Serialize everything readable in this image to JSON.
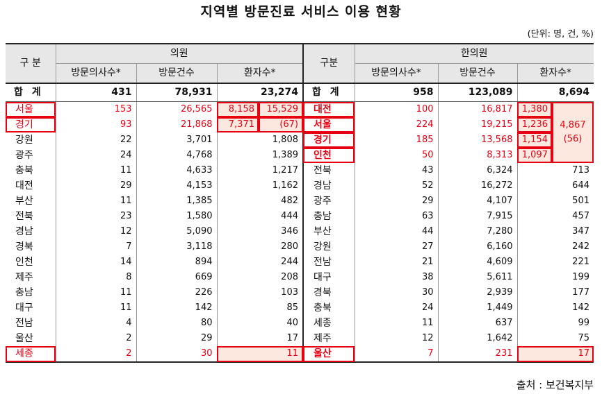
{
  "title": "지역별 방문진료 서비스 이용 현황",
  "unit": "(단위: 명, 건, %)",
  "source": "출처 : 보건복지부",
  "colors": {
    "highlight_red": "#e60012",
    "highlight_fill": "#fde8df",
    "header_fill": "#e7e7e7"
  },
  "header": {
    "region": "구 분",
    "clinic": "의원",
    "region2": "구분",
    "oriental": "한의원",
    "cols_left": [
      "방문의사수*",
      "방문건수",
      "환자수*"
    ],
    "cols_right": [
      "방문의사수*",
      "방문건수",
      "환자수*"
    ]
  },
  "total": {
    "label": "합 계",
    "left": [
      "431",
      "78,931",
      "23,274"
    ],
    "label2": "합 계",
    "right": [
      "958",
      "123,089",
      "8,694"
    ]
  },
  "groups": {
    "left_patients_split": [
      "8,158",
      "7,371"
    ],
    "left_patients_sum": "15,529",
    "left_patients_pct": "(67)",
    "right_patients_sum": "4,867",
    "right_patients_pct": "(56)"
  },
  "rows": [
    {
      "l_region": "서울",
      "l_doc": "153",
      "l_visit": "26,565",
      "l_pat": "8,158",
      "r_region": "대전",
      "r_doc": "100",
      "r_visit": "16,817",
      "r_pat": "1,380"
    },
    {
      "l_region": "경기",
      "l_doc": "93",
      "l_visit": "21,868",
      "l_pat": "7,371",
      "r_region": "서울",
      "r_doc": "224",
      "r_visit": "19,215",
      "r_pat": "1,236"
    },
    {
      "l_region": "강원",
      "l_doc": "22",
      "l_visit": "3,701",
      "l_pat": "1,808",
      "r_region": "경기",
      "r_doc": "185",
      "r_visit": "13,568",
      "r_pat": "1,154"
    },
    {
      "l_region": "광주",
      "l_doc": "24",
      "l_visit": "4,768",
      "l_pat": "1,389",
      "r_region": "인천",
      "r_doc": "50",
      "r_visit": "8,313",
      "r_pat": "1,097"
    },
    {
      "l_region": "충북",
      "l_doc": "11",
      "l_visit": "4,633",
      "l_pat": "1,217",
      "r_region": "전북",
      "r_doc": "43",
      "r_visit": "6,324",
      "r_pat": "713"
    },
    {
      "l_region": "대전",
      "l_doc": "29",
      "l_visit": "4,153",
      "l_pat": "1,162",
      "r_region": "경남",
      "r_doc": "52",
      "r_visit": "16,272",
      "r_pat": "644"
    },
    {
      "l_region": "부산",
      "l_doc": "11",
      "l_visit": "1,385",
      "l_pat": "482",
      "r_region": "광주",
      "r_doc": "29",
      "r_visit": "4,107",
      "r_pat": "501"
    },
    {
      "l_region": "전북",
      "l_doc": "23",
      "l_visit": "1,580",
      "l_pat": "444",
      "r_region": "충남",
      "r_doc": "63",
      "r_visit": "7,915",
      "r_pat": "457"
    },
    {
      "l_region": "경남",
      "l_doc": "12",
      "l_visit": "5,090",
      "l_pat": "346",
      "r_region": "부산",
      "r_doc": "44",
      "r_visit": "7,280",
      "r_pat": "347"
    },
    {
      "l_region": "경북",
      "l_doc": "7",
      "l_visit": "3,118",
      "l_pat": "280",
      "r_region": "강원",
      "r_doc": "27",
      "r_visit": "6,160",
      "r_pat": "242"
    },
    {
      "l_region": "인천",
      "l_doc": "14",
      "l_visit": "894",
      "l_pat": "244",
      "r_region": "전남",
      "r_doc": "21",
      "r_visit": "4,609",
      "r_pat": "221"
    },
    {
      "l_region": "제주",
      "l_doc": "8",
      "l_visit": "669",
      "l_pat": "208",
      "r_region": "대구",
      "r_doc": "38",
      "r_visit": "5,611",
      "r_pat": "199"
    },
    {
      "l_region": "충남",
      "l_doc": "11",
      "l_visit": "226",
      "l_pat": "103",
      "r_region": "경북",
      "r_doc": "30",
      "r_visit": "2,939",
      "r_pat": "177"
    },
    {
      "l_region": "대구",
      "l_doc": "11",
      "l_visit": "142",
      "l_pat": "85",
      "r_region": "충북",
      "r_doc": "24",
      "r_visit": "1,449",
      "r_pat": "142"
    },
    {
      "l_region": "전남",
      "l_doc": "4",
      "l_visit": "80",
      "l_pat": "40",
      "r_region": "세종",
      "r_doc": "11",
      "r_visit": "637",
      "r_pat": "99"
    },
    {
      "l_region": "울산",
      "l_doc": "2",
      "l_visit": "29",
      "l_pat": "17",
      "r_region": "제주",
      "r_doc": "12",
      "r_visit": "1,642",
      "r_pat": "75"
    },
    {
      "l_region": "세종",
      "l_doc": "2",
      "l_visit": "30",
      "l_pat": "11",
      "r_region": "울산",
      "r_doc": "7",
      "r_visit": "231",
      "r_pat": "17"
    }
  ]
}
